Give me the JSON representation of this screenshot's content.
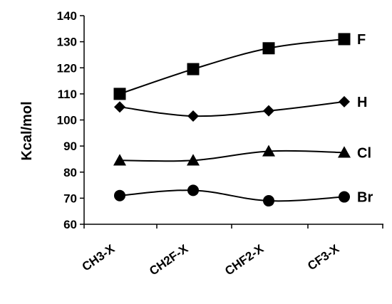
{
  "chart_data": {
    "type": "line",
    "title": "",
    "xlabel": "",
    "ylabel": "Kcal/mol",
    "categories": [
      "CH3-X",
      "CH2F-X",
      "CHF2-X",
      "CF3-X"
    ],
    "ylim": [
      60,
      140
    ],
    "yticks": [
      60,
      70,
      80,
      90,
      100,
      110,
      120,
      130,
      140
    ],
    "grid": false,
    "legend": "labels at right end of each line",
    "line_color": "#000000",
    "series": [
      {
        "name": "F",
        "marker": "square",
        "values": [
          110,
          119.5,
          127.5,
          131
        ]
      },
      {
        "name": "H",
        "marker": "diamond",
        "values": [
          105,
          101.5,
          103.5,
          107
        ]
      },
      {
        "name": "Cl",
        "marker": "triangle",
        "values": [
          84.5,
          84.5,
          88,
          87.5
        ]
      },
      {
        "name": "Br",
        "marker": "circle",
        "values": [
          71,
          73,
          69,
          70.5
        ]
      }
    ]
  }
}
